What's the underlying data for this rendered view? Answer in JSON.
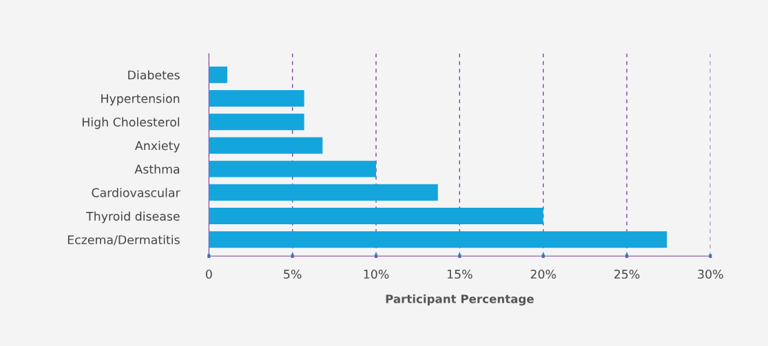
{
  "chart_data": {
    "type": "bar",
    "orientation": "horizontal",
    "xlabel": "Participant Percentage",
    "categories": [
      "Diabetes",
      "Hypertension",
      "High Cholesterol",
      "Anxiety",
      "Asthma",
      "Cardiovascular",
      "Thyroid disease",
      "Eczema/Dermatitis"
    ],
    "values": [
      1.1,
      5.7,
      5.7,
      6.8,
      10.0,
      13.7,
      20.0,
      27.4
    ],
    "color": "#14a5dd",
    "xlim": [
      0,
      30
    ],
    "xticks": [
      0,
      {
        "value": 5,
        "label": "5%"
      },
      {
        "value": 10,
        "label": "10%"
      },
      {
        "value": 15,
        "label": "15%"
      },
      {
        "value": 20,
        "label": "20%"
      },
      {
        "value": 25,
        "label": "25%"
      },
      {
        "value": 30,
        "label": "30%"
      }
    ],
    "grid": "x"
  }
}
